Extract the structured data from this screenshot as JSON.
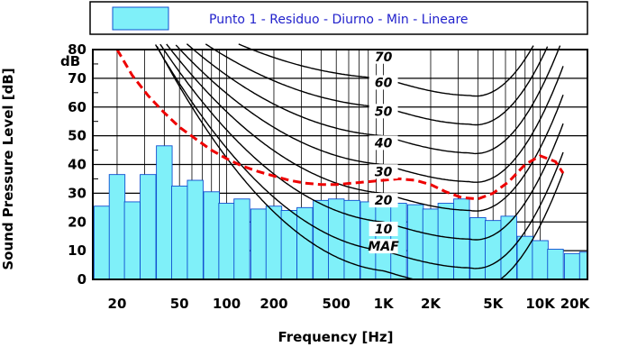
{
  "chart_data": {
    "type": "bar",
    "title": "Punto 1 - Residuo - Diurno - Min - Lineare",
    "xlabel": "Frequency [Hz]",
    "ylabel": "Sound Pressure Level [dB]",
    "y_unit_label": "dB",
    "x_scale": "log",
    "xlim": [
      14,
      20000
    ],
    "ylim": [
      0,
      80
    ],
    "grid": true,
    "legend_placement": "top",
    "x_tick_labels": [
      {
        "f": 20,
        "label": "20"
      },
      {
        "f": 50,
        "label": "50"
      },
      {
        "f": 100,
        "label": "100"
      },
      {
        "f": 200,
        "label": "200"
      },
      {
        "f": 500,
        "label": "500"
      },
      {
        "f": 1000,
        "label": "1K"
      },
      {
        "f": 2000,
        "label": "2K"
      },
      {
        "f": 5000,
        "label": "5K"
      },
      {
        "f": 10000,
        "label": "10K"
      },
      {
        "f": 20000,
        "label": "20K"
      }
    ],
    "y_ticks": [
      0,
      10,
      20,
      30,
      40,
      50,
      60,
      70,
      80
    ],
    "bar_series": {
      "name": "Punto 1 - Residuo - Diurno - Min - Lineare",
      "color": "#7ff0f9",
      "edge": "#0f4fd0",
      "frequencies": [
        16,
        20,
        25,
        31.5,
        40,
        50,
        63,
        80,
        100,
        125,
        160,
        200,
        250,
        315,
        400,
        500,
        630,
        800,
        1000,
        1250,
        1600,
        2000,
        2500,
        3150,
        4000,
        5000,
        6300,
        8000,
        10000,
        12500,
        16000,
        20000
      ],
      "values": [
        25.5,
        36.5,
        27,
        36.5,
        46.5,
        32.5,
        34.5,
        30.5,
        26.5,
        28,
        24.5,
        25.5,
        24,
        25,
        27.5,
        28,
        27.5,
        27,
        26.5,
        26.5,
        26,
        24.5,
        26.5,
        28,
        21.5,
        20.5,
        22,
        15,
        13.5,
        10.5,
        9,
        9.5
      ]
    },
    "curve_labels": [
      {
        "text": "70",
        "f": 1000,
        "db": 76
      },
      {
        "text": "60",
        "f": 1000,
        "db": 67
      },
      {
        "text": "50",
        "f": 1000,
        "db": 57
      },
      {
        "text": "40",
        "f": 1000,
        "db": 46
      },
      {
        "text": "30",
        "f": 1000,
        "db": 36
      },
      {
        "text": "20",
        "f": 1000,
        "db": 26
      },
      {
        "text": "10",
        "f": 1000,
        "db": 16
      },
      {
        "text": "MAF",
        "f": 1000,
        "db": 10
      }
    ],
    "curve_levels": [
      0,
      10,
      20,
      30,
      40,
      50,
      60,
      70
    ],
    "threshold_curve": {
      "color": "#ee0000",
      "style": "dashed",
      "points": [
        {
          "f": 20,
          "db": 80
        },
        {
          "f": 25,
          "db": 71
        },
        {
          "f": 31.5,
          "db": 64
        },
        {
          "f": 40,
          "db": 58
        },
        {
          "f": 50,
          "db": 53
        },
        {
          "f": 63,
          "db": 49
        },
        {
          "f": 80,
          "db": 45
        },
        {
          "f": 100,
          "db": 42
        },
        {
          "f": 125,
          "db": 39.5
        },
        {
          "f": 160,
          "db": 37.5
        },
        {
          "f": 200,
          "db": 36
        },
        {
          "f": 250,
          "db": 34.5
        },
        {
          "f": 315,
          "db": 33.5
        },
        {
          "f": 400,
          "db": 33
        },
        {
          "f": 500,
          "db": 33
        },
        {
          "f": 630,
          "db": 33.5
        },
        {
          "f": 800,
          "db": 34
        },
        {
          "f": 1000,
          "db": 34.5
        },
        {
          "f": 1250,
          "db": 35
        },
        {
          "f": 1600,
          "db": 34.5
        },
        {
          "f": 2000,
          "db": 33
        },
        {
          "f": 2500,
          "db": 30.5
        },
        {
          "f": 3150,
          "db": 28.5
        },
        {
          "f": 4000,
          "db": 28
        },
        {
          "f": 5000,
          "db": 30
        },
        {
          "f": 6300,
          "db": 34
        },
        {
          "f": 8000,
          "db": 40
        },
        {
          "f": 10000,
          "db": 43
        },
        {
          "f": 12500,
          "db": 41
        },
        {
          "f": 14000,
          "db": 37
        }
      ]
    }
  }
}
